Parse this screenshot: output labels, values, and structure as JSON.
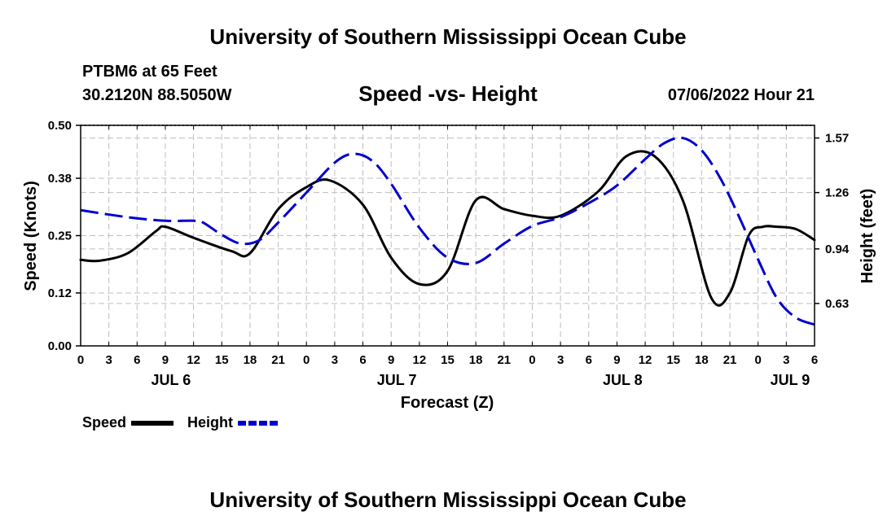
{
  "header": {
    "title": "University of Southern Mississippi Ocean Cube",
    "station": "PTBM6 at 65 Feet",
    "coords": "30.2120N  88.5050W",
    "subtitle": "Speed -vs- Height",
    "timestamp": "07/06/2022 Hour 21"
  },
  "footer": {
    "title": "University of Southern Mississippi Ocean Cube"
  },
  "chart_data": {
    "type": "line",
    "title": "Speed -vs- Height",
    "xlabel": "Forecast (Z)",
    "ylabel": "Speed (Knots)",
    "y2label": "Height (feet)",
    "x_unit": "hours since JUL 6 00Z",
    "xlim": [
      0,
      78
    ],
    "ylim": [
      0,
      0.5
    ],
    "y2lim": [
      0.389,
      1.642
    ],
    "x_ticks": [
      0,
      3,
      6,
      9,
      12,
      15,
      18,
      21,
      24,
      27,
      30,
      33,
      36,
      39,
      42,
      45,
      48,
      51,
      54,
      57,
      60,
      63,
      66,
      69,
      72,
      75,
      78
    ],
    "x_tick_labels": [
      "0",
      "3",
      "6",
      "9",
      "12",
      "15",
      "18",
      "21",
      "0",
      "3",
      "6",
      "9",
      "12",
      "15",
      "18",
      "21",
      "0",
      "3",
      "6",
      "9",
      "12",
      "15",
      "18",
      "21",
      "0",
      "3",
      "6"
    ],
    "date_labels": [
      {
        "label": "JUL 6",
        "x": 9.6
      },
      {
        "label": "JUL 7",
        "x": 33.6
      },
      {
        "label": "JUL 8",
        "x": 57.6
      },
      {
        "label": "JUL 9",
        "x": 75.4
      }
    ],
    "y_ticks": [
      0.0,
      0.12,
      0.25,
      0.38,
      0.5
    ],
    "y_tick_labels": [
      "0.00",
      "0.12",
      "0.25",
      "0.38",
      "0.50"
    ],
    "y2_ticks": [
      0.63,
      0.94,
      1.26,
      1.57
    ],
    "y2_tick_labels": [
      "0.63",
      "0.94",
      "1.26",
      "1.57"
    ],
    "grid": true,
    "legend_position": "bottom-left",
    "series": [
      {
        "name": "Speed",
        "axis": "left",
        "color": "#000000",
        "dash": "solid",
        "x": [
          0,
          2,
          5,
          8,
          9,
          12,
          16,
          18,
          21,
          24,
          26.5,
          30,
          33,
          36,
          39,
          42,
          45,
          48,
          51,
          55,
          58,
          61,
          64,
          67,
          69,
          71,
          72.5,
          74,
          76,
          78
        ],
        "y": [
          0.195,
          0.193,
          0.21,
          0.26,
          0.27,
          0.245,
          0.215,
          0.21,
          0.31,
          0.36,
          0.375,
          0.32,
          0.2,
          0.14,
          0.17,
          0.33,
          0.31,
          0.295,
          0.295,
          0.35,
          0.43,
          0.43,
          0.33,
          0.11,
          0.12,
          0.25,
          0.27,
          0.27,
          0.265,
          0.24
        ]
      },
      {
        "name": "Height",
        "axis": "right",
        "color": "#0000cc",
        "dash": "dashed",
        "x": [
          0,
          5,
          9,
          12,
          13,
          15,
          17,
          19,
          21,
          24,
          27,
          29,
          31,
          33,
          36,
          39,
          42,
          45,
          48,
          51,
          54,
          57,
          60,
          62,
          64,
          66,
          68,
          70,
          72,
          74,
          76,
          78
        ],
        "y": [
          1.16,
          1.12,
          1.1,
          1.1,
          1.09,
          1.02,
          0.97,
          0.99,
          1.09,
          1.26,
          1.43,
          1.48,
          1.44,
          1.31,
          1.06,
          0.89,
          0.86,
          0.97,
          1.07,
          1.12,
          1.2,
          1.3,
          1.45,
          1.54,
          1.57,
          1.5,
          1.34,
          1.12,
          0.88,
          0.66,
          0.55,
          0.51
        ]
      }
    ]
  }
}
